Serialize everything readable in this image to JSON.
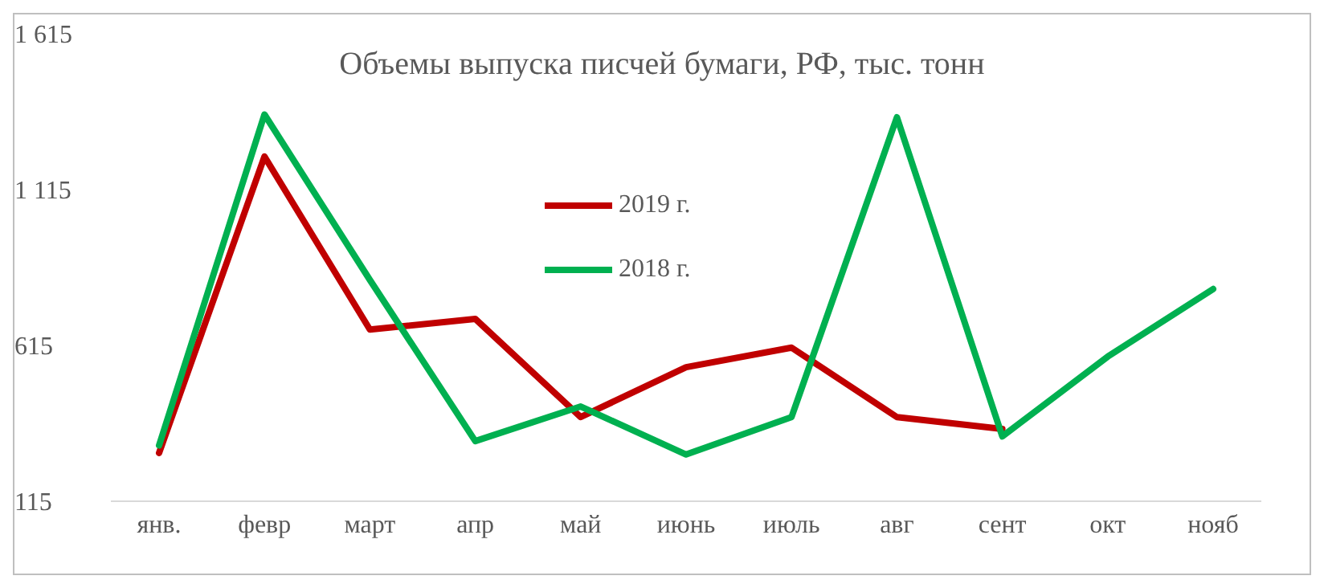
{
  "chart_data": {
    "type": "line",
    "title": "Объемы выпуска писчей бумаги, РФ, тыс. тонн",
    "categories": [
      "янв.",
      "февр",
      "март",
      "апр",
      "май",
      "июнь",
      "июль",
      "авг",
      "сент",
      "окт",
      "нояб"
    ],
    "series": [
      {
        "name": "2019 г.",
        "color": "#c00000",
        "values": [
          270,
          1221,
          666,
          700,
          385,
          545,
          608,
          385,
          347,
          null,
          null
        ]
      },
      {
        "name": "2018 г.",
        "color": "#00b050",
        "values": [
          294,
          1356,
          825,
          308,
          419,
          265,
          385,
          1347,
          323,
          579,
          796
        ]
      }
    ],
    "ylim": [
      115,
      1615
    ],
    "yticks": [
      115,
      615,
      {
        "value": 1115,
        "label": "1 115"
      },
      {
        "value": 1615,
        "label": "1 615"
      }
    ],
    "grid": false,
    "legend": "top",
    "marker": "none",
    "line_style": "solid"
  }
}
